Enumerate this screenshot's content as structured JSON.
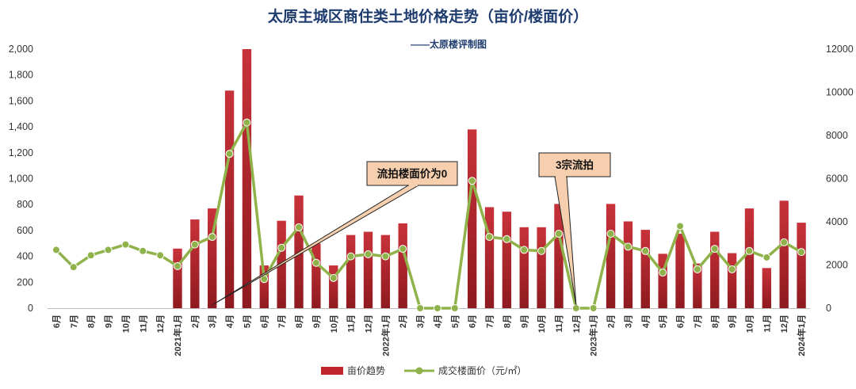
{
  "chart_data": {
    "type": "bar+line",
    "title": "太原主城区商住类土地价格走势（亩价/楼面价）",
    "subtitle": "——太原楼评制图",
    "categories": [
      "6月",
      "7月",
      "8月",
      "9月",
      "10月",
      "11月",
      "12月",
      "2021年1月",
      "2月",
      "3月",
      "4月",
      "5月",
      "6月",
      "7月",
      "8月",
      "9月",
      "10月",
      "11月",
      "12月",
      "2022年1月",
      "2月",
      "3月",
      "4月",
      "5月",
      "6月",
      "7月",
      "8月",
      "9月",
      "10月",
      "11月",
      "12月",
      "2023年1月",
      "2月",
      "3月",
      "4月",
      "5月",
      "6月",
      "7月",
      "8月",
      "9月",
      "10月",
      "11月",
      "12月",
      "2024年1月"
    ],
    "series": [
      {
        "name": "亩价趋势",
        "type": "bar",
        "axis": "left",
        "color": "#c0272d",
        "values": [
          null,
          null,
          null,
          null,
          null,
          null,
          null,
          460,
          685,
          770,
          1680,
          2000,
          330,
          675,
          870,
          500,
          330,
          565,
          590,
          565,
          655,
          0,
          0,
          0,
          1380,
          780,
          745,
          625,
          625,
          805,
          0,
          0,
          805,
          670,
          605,
          420,
          575,
          345,
          590,
          425,
          770,
          310,
          830,
          660
        ]
      },
      {
        "name": "成交楼面价（元/㎡）",
        "type": "line",
        "axis": "right",
        "color": "#8fb34a",
        "values": [
          2700,
          1900,
          2450,
          2700,
          2950,
          2650,
          2450,
          1950,
          2950,
          3300,
          7150,
          8600,
          1350,
          2800,
          3750,
          2100,
          1400,
          2400,
          2500,
          2400,
          2750,
          0,
          0,
          0,
          5900,
          3300,
          3200,
          2700,
          2650,
          3450,
          0,
          0,
          3450,
          2850,
          2650,
          1650,
          3800,
          1800,
          2750,
          1800,
          2650,
          2350,
          3050,
          2600
        ]
      }
    ],
    "left_axis": {
      "min": 0,
      "max": 2000,
      "ticks": [
        "0",
        "200",
        "400",
        "600",
        "800",
        "1,000",
        "1,200",
        "1,400",
        "1,600",
        "1,800",
        "2,000"
      ]
    },
    "right_axis": {
      "min": 0,
      "max": 12000,
      "ticks": [
        "0",
        "2000",
        "4000",
        "6000",
        "8000",
        "10000",
        "12000"
      ]
    },
    "annotations": [
      {
        "text": "流拍楼面价为0",
        "category": "3月"
      },
      {
        "text": "3宗流拍",
        "category": "12月"
      }
    ],
    "legend": {
      "position": "bottom"
    }
  }
}
